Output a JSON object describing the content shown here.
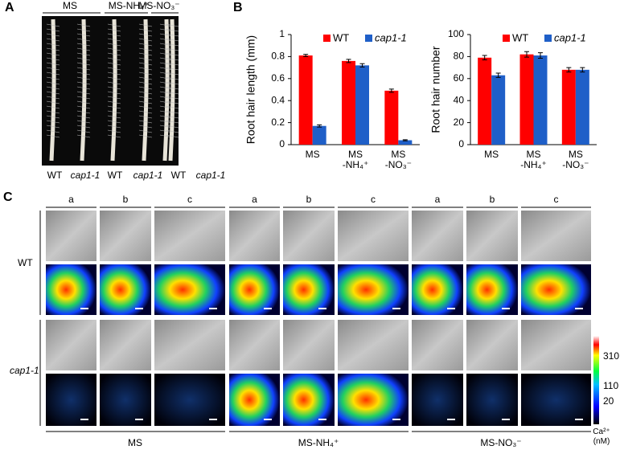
{
  "panel_labels": [
    "A",
    "B",
    "C"
  ],
  "panel_a": {
    "media": [
      "MS",
      "MS-NH₄⁺",
      "MS-NO₃⁻"
    ],
    "genotypes": [
      "WT",
      "cap1-1",
      "WT",
      "cap1-1",
      "WT",
      "cap1-1"
    ]
  },
  "chart_data": [
    {
      "type": "bar",
      "ylabel": "Root hair length (mm)",
      "categories": [
        "MS",
        "MS\n-NH₄⁺",
        "MS\n-NO₃⁻"
      ],
      "series": [
        {
          "name": "WT",
          "color": "#ff0000",
          "values": [
            0.81,
            0.76,
            0.49
          ],
          "errors": [
            0.01,
            0.015,
            0.015
          ]
        },
        {
          "name": "cap1-1",
          "color": "#1f5fc8",
          "values": [
            0.17,
            0.72,
            0.04
          ],
          "errors": [
            0.01,
            0.015,
            0.005
          ]
        }
      ],
      "ylim": [
        0,
        1
      ],
      "yticks": [
        0,
        0.2,
        0.4,
        0.6,
        0.8,
        1
      ],
      "legend": "top"
    },
    {
      "type": "bar",
      "ylabel": "Root hair number",
      "categories": [
        "MS",
        "MS\n-NH₄⁺",
        "MS\n-NO₃⁻"
      ],
      "series": [
        {
          "name": "WT",
          "color": "#ff0000",
          "values": [
            79,
            82,
            68
          ],
          "errors": [
            2,
            2.5,
            2
          ]
        },
        {
          "name": "cap1-1",
          "color": "#1f5fc8",
          "values": [
            63,
            81,
            68
          ],
          "errors": [
            2,
            2.5,
            2
          ]
        }
      ],
      "ylim": [
        0,
        100
      ],
      "yticks": [
        0,
        20,
        40,
        60,
        80,
        100
      ],
      "legend": "top"
    }
  ],
  "panel_c": {
    "columns": [
      "a",
      "b",
      "c",
      "a",
      "b",
      "c",
      "a",
      "b",
      "c"
    ],
    "rows": [
      "WT",
      "cap1-1"
    ],
    "media": [
      "MS",
      "MS-NH₄⁺",
      "MS-NO₃⁻"
    ],
    "colorbar": {
      "ticks": [
        310,
        110,
        20
      ],
      "label": "Ca²⁺\n(nM)"
    }
  }
}
